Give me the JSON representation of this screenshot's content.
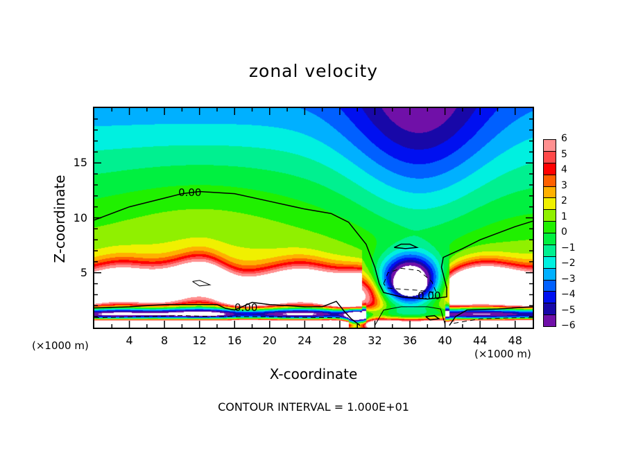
{
  "chart_data": {
    "type": "heatmap",
    "title": "zonal velocity",
    "xlabel": "X-coordinate",
    "ylabel": "Z-coordinate",
    "x_unit_label": "(×1000 m)",
    "xlim": [
      0,
      50
    ],
    "ylim": [
      0,
      20
    ],
    "x_ticks": [
      4,
      8,
      12,
      16,
      20,
      24,
      28,
      32,
      36,
      40,
      44,
      48
    ],
    "y_ticks": [
      5,
      10,
      15
    ],
    "contour_labels": [
      "0.00",
      "0.00",
      "0.00"
    ],
    "contour_interval_text": "CONTOUR INTERVAL = 1.000E+01",
    "colorbar": {
      "levels": [
        6,
        5,
        4,
        3,
        2,
        1,
        0,
        -1,
        -2,
        -3,
        -4,
        -5,
        -6
      ],
      "tick_labels": [
        "6",
        "5",
        "4",
        "3",
        "2",
        "1",
        "0",
        "−1",
        "−2",
        "−3",
        "−4",
        "−5",
        "−6"
      ],
      "colors": [
        "#ff9090",
        "#ff4848",
        "#ff0000",
        "#ff6000",
        "#ffb000",
        "#f0f000",
        "#90f000",
        "#20f000",
        "#00f040",
        "#00f090",
        "#00f0e0",
        "#00b0ff",
        "#0060ff",
        "#0010f0",
        "#1808a8",
        "#7010a8"
      ]
    },
    "field_description": "Upper region weakly negative (cyan/blue, min near x=38,z=19); mid region ~0 (green); strong positive jet (red/white, >6) near z=2.5-5; negative layer (blue) near z=1.5; closed negative cell near x=36,z=4; zero contour near z=10-12"
  }
}
